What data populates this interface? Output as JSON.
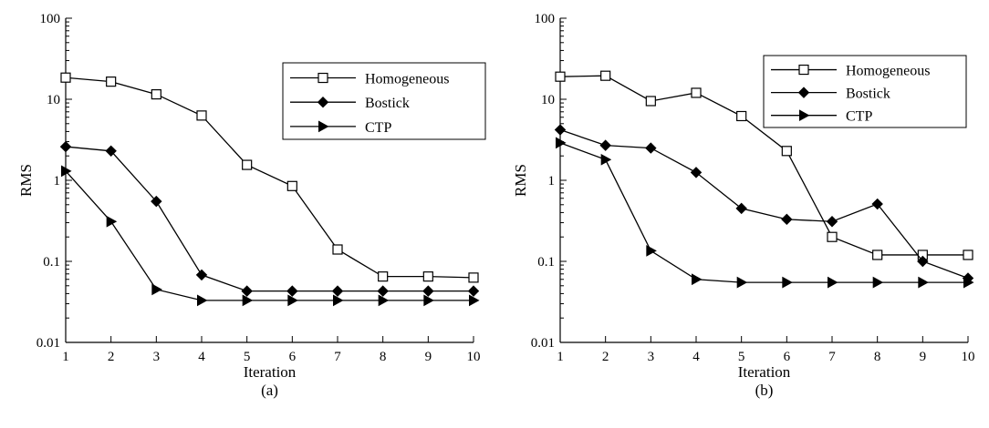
{
  "chart_data": [
    {
      "type": "line",
      "panel_label": "(a)",
      "xlabel": "Iteration",
      "ylabel": "RMS",
      "yscale": "log",
      "xlim": [
        1,
        10
      ],
      "ylim": [
        0.01,
        100
      ],
      "x": [
        1,
        2,
        3,
        4,
        5,
        6,
        7,
        8,
        9,
        10
      ],
      "x_tick_labels": [
        "1",
        "2",
        "3",
        "4",
        "5",
        "6",
        "7",
        "8",
        "9",
        "10"
      ],
      "y_tick_values": [
        0.01,
        0.1,
        1,
        10,
        100
      ],
      "y_tick_labels": [
        "0.01",
        "0.1",
        "1",
        "10",
        "100"
      ],
      "legend_position": "upper-right",
      "series": [
        {
          "name": "Homogeneous",
          "marker": "square-open",
          "values": [
            18.5,
            16.5,
            11.5,
            6.3,
            1.55,
            0.85,
            0.14,
            0.065,
            0.065,
            0.063
          ]
        },
        {
          "name": "Bostick",
          "marker": "diamond-filled",
          "values": [
            2.6,
            2.3,
            0.55,
            0.068,
            0.043,
            0.043,
            0.043,
            0.043,
            0.043,
            0.043
          ]
        },
        {
          "name": "CTP",
          "marker": "triangle-right-filled",
          "values": [
            1.3,
            0.31,
            0.045,
            0.033,
            0.033,
            0.033,
            0.033,
            0.033,
            0.033,
            0.033
          ]
        }
      ]
    },
    {
      "type": "line",
      "panel_label": "(b)",
      "xlabel": "Iteration",
      "ylabel": "RMS",
      "yscale": "log",
      "xlim": [
        1,
        10
      ],
      "ylim": [
        0.01,
        100
      ],
      "x": [
        1,
        2,
        3,
        4,
        5,
        6,
        7,
        8,
        9,
        10
      ],
      "x_tick_labels": [
        "1",
        "2",
        "3",
        "4",
        "5",
        "6",
        "7",
        "8",
        "9",
        "10"
      ],
      "y_tick_values": [
        0.01,
        0.1,
        1,
        10,
        100
      ],
      "y_tick_labels": [
        "0.01",
        "0.1",
        "1",
        "10",
        "100"
      ],
      "legend_position": "upper-right",
      "series": [
        {
          "name": "Homogeneous",
          "marker": "square-open",
          "values": [
            19,
            19.5,
            9.5,
            12,
            6.2,
            2.3,
            0.2,
            0.12,
            0.12,
            0.12
          ]
        },
        {
          "name": "Bostick",
          "marker": "diamond-filled",
          "values": [
            4.2,
            2.7,
            2.5,
            1.25,
            0.45,
            0.33,
            0.31,
            0.51,
            0.1,
            0.062
          ]
        },
        {
          "name": "CTP",
          "marker": "triangle-right-filled",
          "values": [
            2.9,
            1.8,
            0.135,
            0.06,
            0.055,
            0.055,
            0.055,
            0.055,
            0.055,
            0.055
          ]
        }
      ]
    }
  ]
}
